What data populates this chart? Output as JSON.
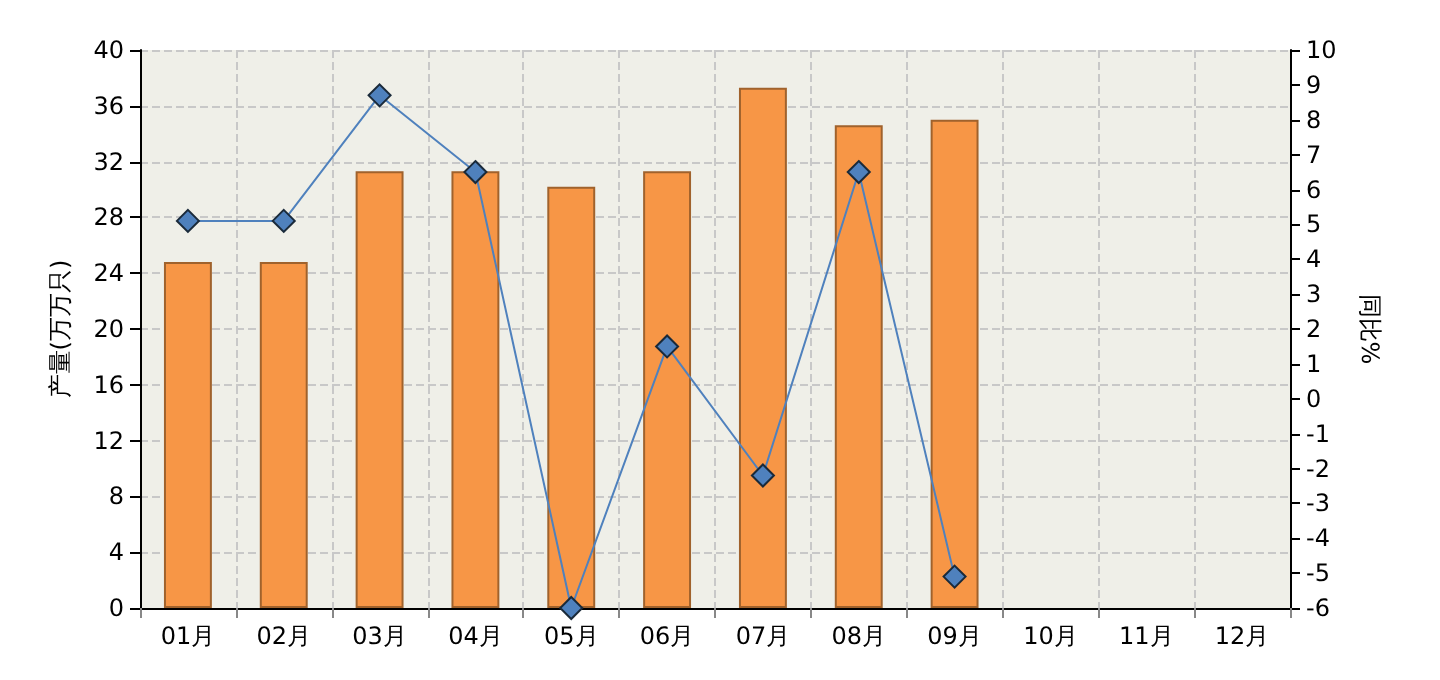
{
  "chart_data": {
    "type": "bar",
    "ylabel": "产量(万万只)",
    "y2label": "同比%",
    "categories": [
      "01月",
      "02月",
      "03月",
      "04月",
      "05月",
      "06月",
      "07月",
      "08月",
      "09月",
      "10月",
      "11月",
      "12月"
    ],
    "series": [
      {
        "color": "#f79646",
        "values": [
          24.8,
          24.8,
          31.3,
          31.3,
          30.2,
          31.3,
          37.3,
          34.6,
          35.0,
          null,
          null,
          null
        ]
      },
      {
        "type": "line",
        "axis": "y2",
        "color": "#4f81bd",
        "marker": "diamond",
        "values": [
          5.1,
          5.1,
          8.7,
          6.5,
          -6.0,
          1.5,
          -2.2,
          6.5,
          -5.1,
          null,
          null,
          null
        ]
      }
    ],
    "ylim": [
      0,
      40
    ],
    "yticks": [
      0,
      4,
      8,
      12,
      16,
      20,
      24,
      28,
      32,
      36,
      40
    ],
    "y2lim": [
      -6,
      10
    ],
    "y2ticks": [
      -6,
      -5,
      -4,
      -3,
      -2,
      -1,
      0,
      1,
      2,
      3,
      4,
      5,
      6,
      7,
      8,
      9,
      10
    ],
    "grid": true
  }
}
